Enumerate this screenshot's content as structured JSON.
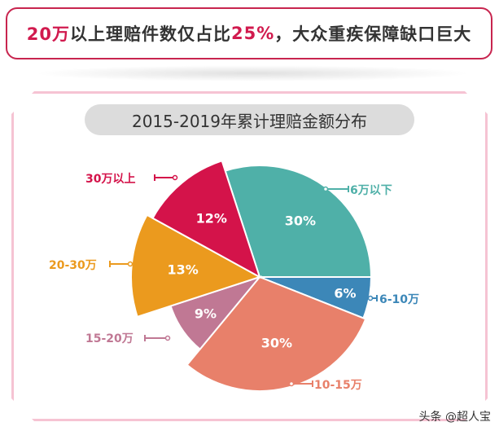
{
  "headline": {
    "part1": "20万",
    "part2": "以上理赔件数仅占比",
    "part3": "25%",
    "part4": "，大众重疾保障缺口巨大"
  },
  "chart_data": {
    "type": "pie",
    "title": "2015-2019年累计理赔金额分布",
    "slices": [
      {
        "label": "6万以下",
        "value": 30,
        "value_label": "30%",
        "color": "#4fb0a8"
      },
      {
        "label": "6-10万",
        "value": 6,
        "value_label": "6%",
        "color": "#3c87b8"
      },
      {
        "label": "10-15万",
        "value": 30,
        "value_label": "30%",
        "color": "#e8806a"
      },
      {
        "label": "15-20万",
        "value": 9,
        "value_label": "9%",
        "color": "#c07894"
      },
      {
        "label": "20-30万",
        "value": 13,
        "value_label": "13%",
        "color": "#eb9a1e"
      },
      {
        "label": "30万以上",
        "value": 12,
        "value_label": "12%",
        "color": "#d4134a"
      }
    ]
  },
  "watermark": "头条 @超人宝"
}
